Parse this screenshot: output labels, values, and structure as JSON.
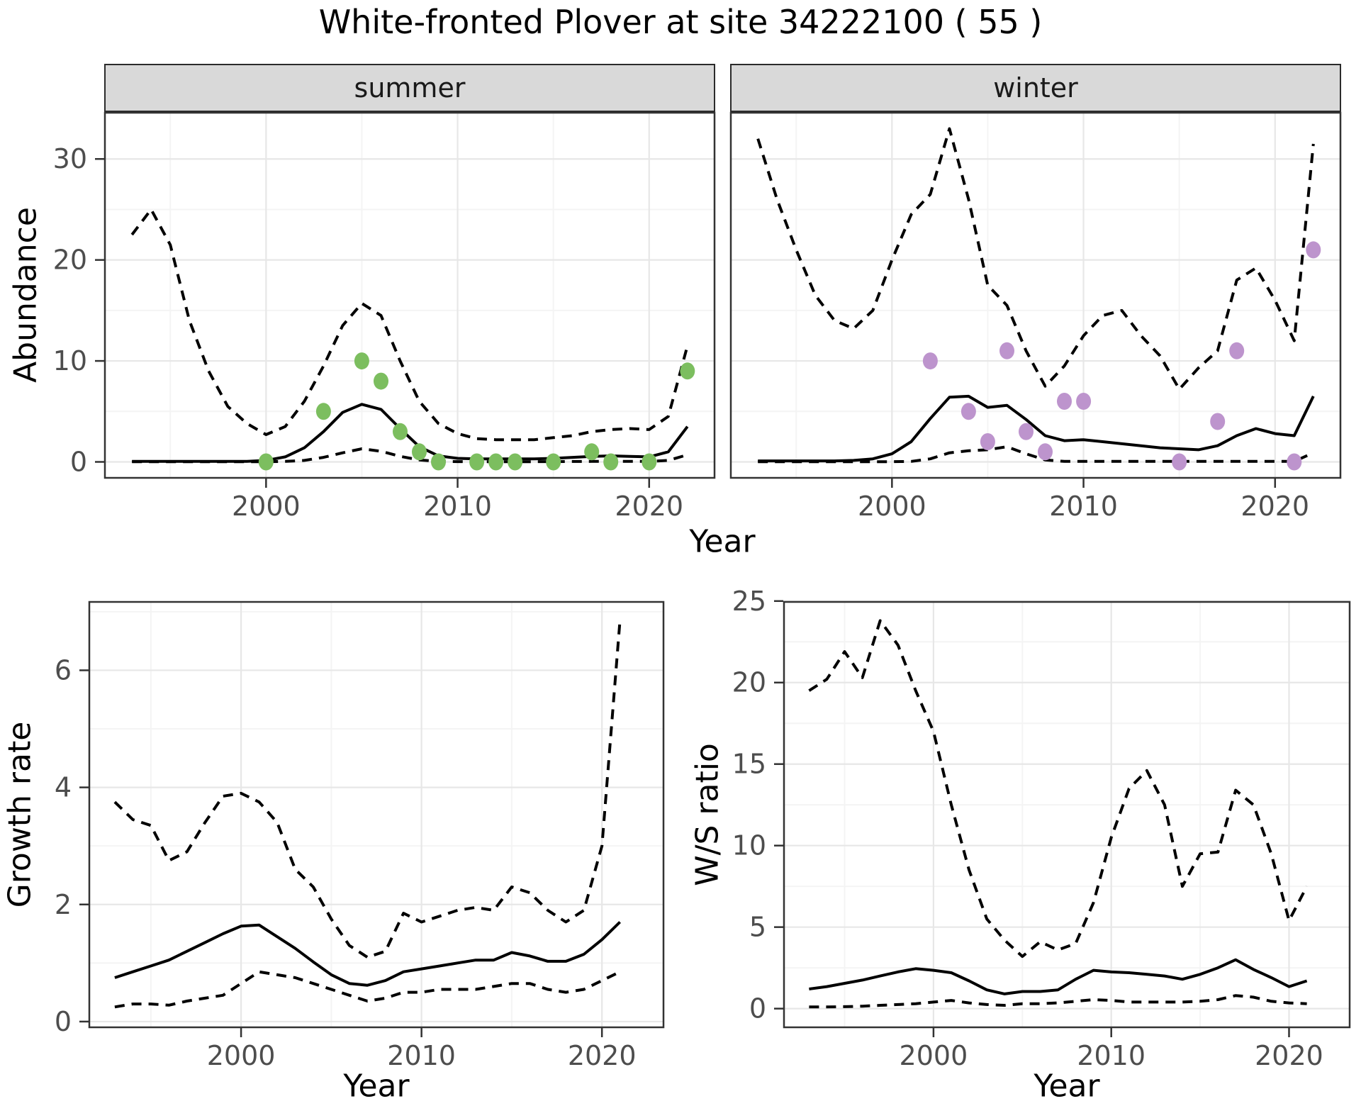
{
  "title": "White-fronted Plover at site 34222100 ( 55 )",
  "colors": {
    "summer_point": "#7cbe5f",
    "winter_point": "#bd94cd",
    "line": "#000000",
    "grid_major": "#e7e7e7",
    "grid_minor": "#f4f4f4",
    "panel_border": "#333333",
    "strip_fill": "#d9d9d9",
    "tick_text": "#4d4d4d"
  },
  "chart_data": [
    {
      "id": "summer",
      "type": "line",
      "facet_label": "summer",
      "xlabel": "Year",
      "ylabel": "Abundance",
      "xlim": [
        1991.55,
        2023.45
      ],
      "ylim": [
        -1.65,
        34.65
      ],
      "x_ticks": [
        2000,
        2010,
        2020
      ],
      "x_minor": [
        1995,
        2005,
        2015
      ],
      "y_ticks": [
        0,
        10,
        20,
        30
      ],
      "y_minor": [
        5,
        15,
        25
      ],
      "years": [
        1993,
        1994,
        1995,
        1996,
        1997,
        1998,
        1999,
        2000,
        2001,
        2002,
        2003,
        2004,
        2005,
        2006,
        2007,
        2008,
        2009,
        2010,
        2011,
        2012,
        2013,
        2014,
        2015,
        2016,
        2017,
        2018,
        2019,
        2020,
        2021,
        2022
      ],
      "series": [
        {
          "name": "lower_ci",
          "style": "dashed",
          "values": [
            0.02,
            0.02,
            0.02,
            0.02,
            0.02,
            0.02,
            0.02,
            0.02,
            0.05,
            0.15,
            0.45,
            0.9,
            1.3,
            1.05,
            0.55,
            0.2,
            0.05,
            0.03,
            0.02,
            0.02,
            0.02,
            0.02,
            0.03,
            0.04,
            0.05,
            0.05,
            0.05,
            0.05,
            0.15,
            0.7
          ]
        },
        {
          "name": "upper_ci",
          "style": "dashed",
          "values": [
            22.5,
            25,
            21.5,
            14,
            9,
            5.5,
            3.8,
            2.7,
            3.5,
            6,
            9.5,
            13.5,
            15.7,
            14.5,
            10,
            6,
            3.8,
            2.8,
            2.3,
            2.2,
            2.2,
            2.2,
            2.4,
            2.6,
            3.0,
            3.2,
            3.3,
            3.2,
            4.5,
            11.5
          ]
        },
        {
          "name": "estimate",
          "style": "solid",
          "values": [
            0.05,
            0.05,
            0.05,
            0.05,
            0.05,
            0.05,
            0.05,
            0.15,
            0.5,
            1.4,
            3.0,
            4.9,
            5.7,
            5.2,
            3.3,
            1.5,
            0.6,
            0.35,
            0.3,
            0.3,
            0.3,
            0.3,
            0.35,
            0.45,
            0.55,
            0.6,
            0.55,
            0.5,
            1.0,
            3.5
          ]
        }
      ],
      "points": {
        "name": "observed_counts_summer",
        "color": "#7cbe5f",
        "data": [
          [
            2000,
            0
          ],
          [
            2003,
            5
          ],
          [
            2005,
            10
          ],
          [
            2006,
            8
          ],
          [
            2007,
            3
          ],
          [
            2008,
            1
          ],
          [
            2009,
            0
          ],
          [
            2011,
            0
          ],
          [
            2012,
            0
          ],
          [
            2013,
            0
          ],
          [
            2015,
            0
          ],
          [
            2017,
            1
          ],
          [
            2018,
            0
          ],
          [
            2020,
            0
          ],
          [
            2022,
            9
          ]
        ]
      }
    },
    {
      "id": "winter",
      "type": "line",
      "facet_label": "winter",
      "xlabel": "",
      "ylabel": "",
      "xlim": [
        1991.55,
        2023.45
      ],
      "ylim": [
        -1.65,
        34.65
      ],
      "x_ticks": [
        2000,
        2010,
        2020
      ],
      "x_minor": [
        1995,
        2005,
        2015
      ],
      "y_ticks": [
        0,
        10,
        20,
        30
      ],
      "y_minor": [
        5,
        15,
        25
      ],
      "years": [
        1993,
        1994,
        1995,
        1996,
        1997,
        1998,
        1999,
        2000,
        2001,
        2002,
        2003,
        2004,
        2005,
        2006,
        2007,
        2008,
        2009,
        2010,
        2011,
        2012,
        2013,
        2014,
        2015,
        2016,
        2017,
        2018,
        2019,
        2020,
        2021,
        2022
      ],
      "series": [
        {
          "name": "lower_ci",
          "style": "dashed",
          "values": [
            0.02,
            0.02,
            0.02,
            0.02,
            0.02,
            0.02,
            0.02,
            0.02,
            0.05,
            0.3,
            0.9,
            1.1,
            1.2,
            1.5,
            0.8,
            0.2,
            0.05,
            0.05,
            0.05,
            0.05,
            0.05,
            0.05,
            0.05,
            0.05,
            0.05,
            0.05,
            0.05,
            0.05,
            0.05,
            0.9
          ]
        },
        {
          "name": "upper_ci",
          "style": "dashed",
          "values": [
            32,
            26,
            21,
            16.5,
            14,
            13.2,
            15,
            20,
            24.5,
            26.5,
            33,
            26,
            17.5,
            15.5,
            11,
            7.5,
            9.5,
            12.5,
            14.5,
            15,
            12.5,
            10.5,
            7.2,
            9.3,
            11,
            18,
            19.2,
            16,
            12,
            31.5
          ]
        },
        {
          "name": "estimate",
          "style": "solid",
          "values": [
            0.1,
            0.1,
            0.1,
            0.1,
            0.1,
            0.15,
            0.3,
            0.8,
            2.0,
            4.3,
            6.4,
            6.5,
            5.4,
            5.6,
            4.2,
            2.6,
            2.1,
            2.2,
            2.0,
            1.8,
            1.6,
            1.4,
            1.3,
            1.2,
            1.6,
            2.6,
            3.3,
            2.8,
            2.6,
            6.5
          ]
        }
      ],
      "points": {
        "name": "observed_counts_winter",
        "color": "#bd94cd",
        "data": [
          [
            2002,
            10
          ],
          [
            2004,
            5
          ],
          [
            2005,
            2
          ],
          [
            2006,
            11
          ],
          [
            2007,
            3
          ],
          [
            2008,
            1
          ],
          [
            2009,
            6
          ],
          [
            2010,
            6
          ],
          [
            2015,
            0
          ],
          [
            2017,
            4
          ],
          [
            2018,
            11
          ],
          [
            2021,
            0
          ],
          [
            2022,
            21
          ]
        ]
      }
    },
    {
      "id": "growth_rate",
      "type": "line",
      "facet_label": "",
      "xlabel": "Year",
      "ylabel": "Growth rate",
      "xlim": [
        1991.55,
        2023.45
      ],
      "ylim": [
        -0.11,
        7.18
      ],
      "x_ticks": [
        2000,
        2010,
        2020
      ],
      "x_minor": [
        1995,
        2005,
        2015
      ],
      "y_ticks": [
        0,
        2,
        4,
        6
      ],
      "y_minor": [
        1,
        3,
        5,
        7
      ],
      "years": [
        1993,
        1994,
        1995,
        1996,
        1997,
        1998,
        1999,
        2000,
        2001,
        2002,
        2003,
        2004,
        2005,
        2006,
        2007,
        2008,
        2009,
        2010,
        2011,
        2012,
        2013,
        2014,
        2015,
        2016,
        2017,
        2018,
        2019,
        2020,
        2021
      ],
      "series": [
        {
          "name": "lower_ci",
          "style": "dashed",
          "values": [
            0.25,
            0.3,
            0.3,
            0.28,
            0.35,
            0.4,
            0.45,
            0.65,
            0.85,
            0.8,
            0.75,
            0.65,
            0.55,
            0.45,
            0.35,
            0.4,
            0.5,
            0.5,
            0.55,
            0.55,
            0.55,
            0.6,
            0.65,
            0.65,
            0.55,
            0.5,
            0.55,
            0.7,
            0.85
          ]
        },
        {
          "name": "upper_ci",
          "style": "dashed",
          "values": [
            3.75,
            3.45,
            3.35,
            2.75,
            2.9,
            3.4,
            3.85,
            3.9,
            3.75,
            3.4,
            2.6,
            2.3,
            1.75,
            1.3,
            1.1,
            1.2,
            1.85,
            1.7,
            1.8,
            1.9,
            1.95,
            1.9,
            2.3,
            2.2,
            1.9,
            1.7,
            1.9,
            3.0,
            6.85
          ]
        },
        {
          "name": "estimate",
          "style": "solid",
          "values": [
            0.75,
            0.85,
            0.95,
            1.05,
            1.2,
            1.35,
            1.5,
            1.63,
            1.65,
            1.45,
            1.25,
            1.02,
            0.8,
            0.65,
            0.62,
            0.7,
            0.85,
            0.9,
            0.95,
            1.0,
            1.05,
            1.05,
            1.18,
            1.12,
            1.03,
            1.03,
            1.15,
            1.4,
            1.7
          ]
        }
      ],
      "points": null
    },
    {
      "id": "ws_ratio",
      "type": "line",
      "facet_label": "",
      "xlabel": "Year",
      "ylabel": "W/S ratio",
      "xlim": [
        1991.55,
        2023.45
      ],
      "ylim": [
        -1.19,
        24.99
      ],
      "x_ticks": [
        2000,
        2010,
        2020
      ],
      "x_minor": [
        1995,
        2005,
        2015
      ],
      "y_ticks": [
        0,
        5,
        10,
        15,
        20,
        25
      ],
      "y_minor": [
        2.5,
        7.5,
        12.5,
        17.5,
        22.5
      ],
      "years": [
        1993,
        1994,
        1995,
        1996,
        1997,
        1998,
        1999,
        2000,
        2001,
        2002,
        2003,
        2004,
        2005,
        2006,
        2007,
        2008,
        2009,
        2010,
        2011,
        2012,
        2013,
        2014,
        2015,
        2016,
        2017,
        2018,
        2019,
        2020,
        2021
      ],
      "series": [
        {
          "name": "lower_ci",
          "style": "dashed",
          "values": [
            0.1,
            0.1,
            0.12,
            0.15,
            0.2,
            0.25,
            0.3,
            0.4,
            0.5,
            0.35,
            0.25,
            0.2,
            0.3,
            0.3,
            0.35,
            0.45,
            0.55,
            0.5,
            0.4,
            0.4,
            0.4,
            0.4,
            0.45,
            0.55,
            0.8,
            0.7,
            0.45,
            0.35,
            0.3
          ]
        },
        {
          "name": "upper_ci",
          "style": "dashed",
          "values": [
            19.5,
            20.2,
            21.9,
            20.3,
            23.8,
            22.3,
            19.5,
            17.0,
            12.5,
            8.5,
            5.5,
            4.2,
            3.2,
            4.1,
            3.6,
            4.0,
            6.5,
            10.5,
            13.5,
            14.6,
            12.5,
            7.5,
            9.5,
            9.6,
            13.4,
            12.5,
            9.5,
            5.4,
            7.5
          ]
        },
        {
          "name": "estimate",
          "style": "solid",
          "values": [
            1.2,
            1.35,
            1.55,
            1.75,
            2.0,
            2.25,
            2.45,
            2.35,
            2.2,
            1.7,
            1.15,
            0.9,
            1.05,
            1.05,
            1.15,
            1.8,
            2.35,
            2.25,
            2.2,
            2.1,
            2.0,
            1.8,
            2.1,
            2.5,
            3.0,
            2.4,
            1.9,
            1.35,
            1.7
          ]
        }
      ],
      "points": null
    }
  ]
}
